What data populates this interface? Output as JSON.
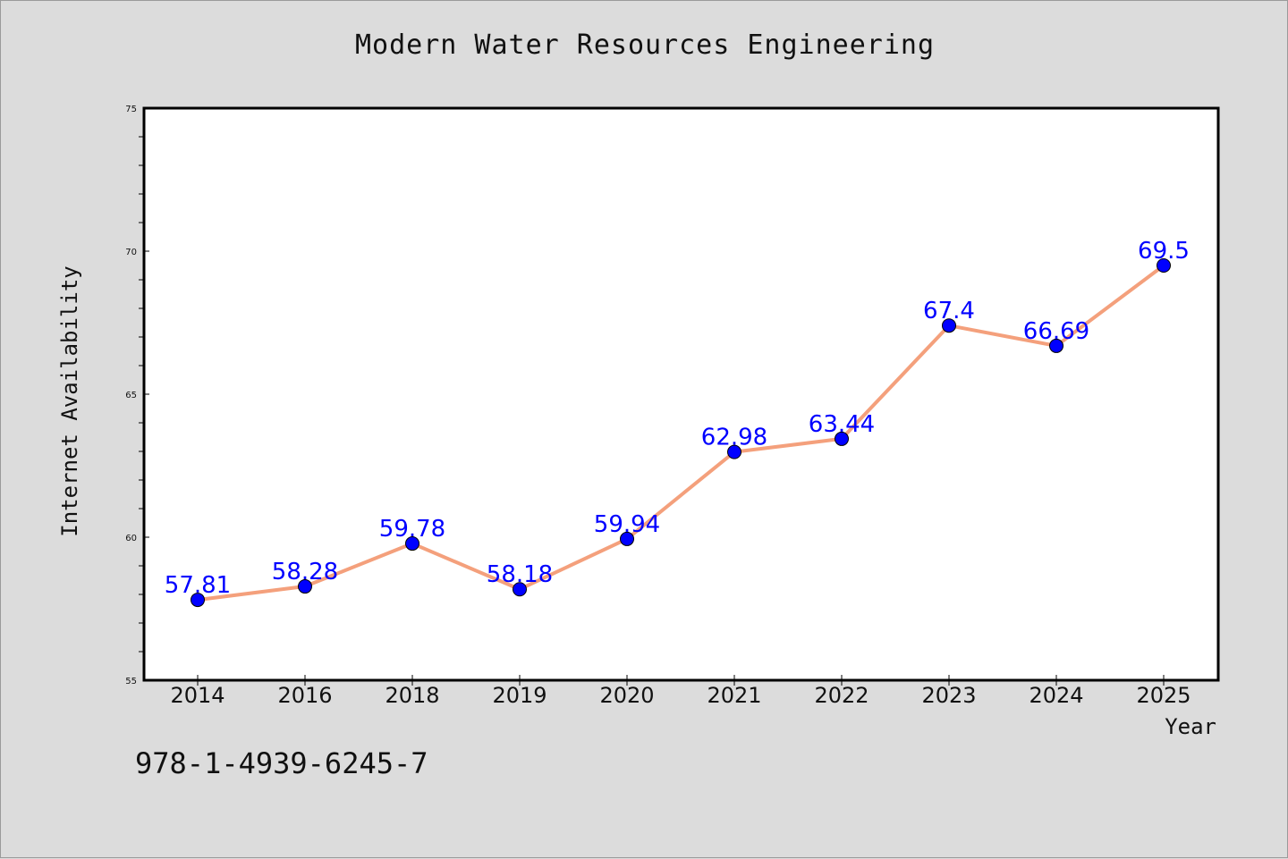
{
  "chart_data": {
    "type": "line",
    "title": "Modern Water Resources Engineering",
    "xlabel": "Year",
    "ylabel": "Internet Availability",
    "categories": [
      "2014",
      "2016",
      "2018",
      "2019",
      "2020",
      "2021",
      "2022",
      "2023",
      "2024",
      "2025"
    ],
    "values": [
      57.81,
      58.28,
      59.78,
      58.18,
      59.94,
      62.98,
      63.44,
      67.4,
      66.69,
      69.5
    ],
    "data_labels": [
      "57.81",
      "58.28",
      "59.78",
      "58.18",
      "59.94",
      "62.98",
      "63.44",
      "67.4",
      "66.69",
      "69.5"
    ],
    "ylim": [
      55,
      75
    ],
    "y_ticks": [
      "55",
      "60",
      "65",
      "70",
      "75"
    ],
    "grid": false,
    "line_color": "#f4a07c",
    "marker_color": "#0000ff",
    "label_color": "#0000ff"
  },
  "footer": {
    "isbn": "978-1-4939-6245-7"
  }
}
